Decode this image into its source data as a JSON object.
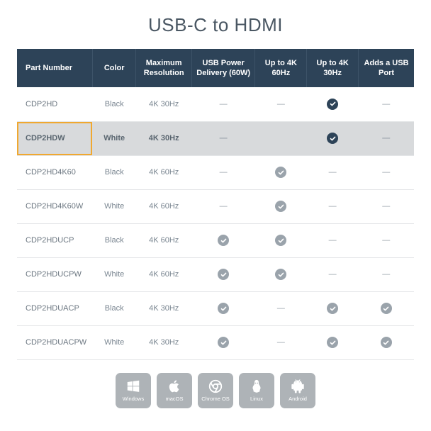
{
  "title": "USB-C to HDMI",
  "colors": {
    "header_bg": "#2d4358",
    "header_border": "#3d5368",
    "row_border": "#e4e6e8",
    "highlight_bg": "#d8dadc",
    "highlight_border": "#f0a830",
    "text_muted": "#7a8691",
    "title_color": "#4a5763",
    "check_dark": "#2d4358",
    "check_gray": "#9aa3ab",
    "os_badge_bg": "#aeb3b7"
  },
  "columns": [
    {
      "key": "part",
      "label": "Part Number"
    },
    {
      "key": "color",
      "label": "Color"
    },
    {
      "key": "res",
      "label": "Maximum Resolution"
    },
    {
      "key": "pd",
      "label": "USB Power Delivery (60W)"
    },
    {
      "key": "hz60",
      "label": "Up to 4K 60Hz"
    },
    {
      "key": "hz30",
      "label": "Up to 4K 30Hz"
    },
    {
      "key": "usb",
      "label": "Adds a USB Port"
    }
  ],
  "rows": [
    {
      "part": "CDP2HD",
      "color": "Black",
      "res": "4K 30Hz",
      "pd": "dash",
      "hz60": "dash",
      "hz30": "check_dark",
      "usb": "dash",
      "highlight": false
    },
    {
      "part": "CDP2HDW",
      "color": "White",
      "res": "4K 30Hz",
      "pd": "dash",
      "hz60": "blank",
      "hz30": "check_dark",
      "usb": "dash",
      "highlight": true
    },
    {
      "part": "CDP2HD4K60",
      "color": "Black",
      "res": "4K 60Hz",
      "pd": "dash",
      "hz60": "check_gray",
      "hz30": "dash",
      "usb": "dash",
      "highlight": false
    },
    {
      "part": "CDP2HD4K60W",
      "color": "White",
      "res": "4K 60Hz",
      "pd": "dash",
      "hz60": "check_gray",
      "hz30": "dash",
      "usb": "dash",
      "highlight": false
    },
    {
      "part": "CDP2HDUCP",
      "color": "Black",
      "res": "4K 60Hz",
      "pd": "check_gray",
      "hz60": "check_gray",
      "hz30": "dash",
      "usb": "dash",
      "highlight": false
    },
    {
      "part": "CDP2HDUCPW",
      "color": "White",
      "res": "4K 60Hz",
      "pd": "check_gray",
      "hz60": "check_gray",
      "hz30": "dash",
      "usb": "dash",
      "highlight": false
    },
    {
      "part": "CDP2HDUACP",
      "color": "Black",
      "res": "4K 30Hz",
      "pd": "check_gray",
      "hz60": "dash",
      "hz30": "check_gray",
      "usb": "check_gray",
      "highlight": false
    },
    {
      "part": "CDP2HDUACPW",
      "color": "White",
      "res": "4K 30Hz",
      "pd": "check_gray",
      "hz60": "dash",
      "hz30": "check_gray",
      "usb": "check_gray",
      "highlight": false
    }
  ],
  "os": [
    {
      "name": "Windows",
      "icon": "windows"
    },
    {
      "name": "macOS",
      "icon": "apple"
    },
    {
      "name": "Chrome OS",
      "icon": "chrome"
    },
    {
      "name": "Linux",
      "icon": "linux"
    },
    {
      "name": "Android",
      "icon": "android"
    }
  ]
}
